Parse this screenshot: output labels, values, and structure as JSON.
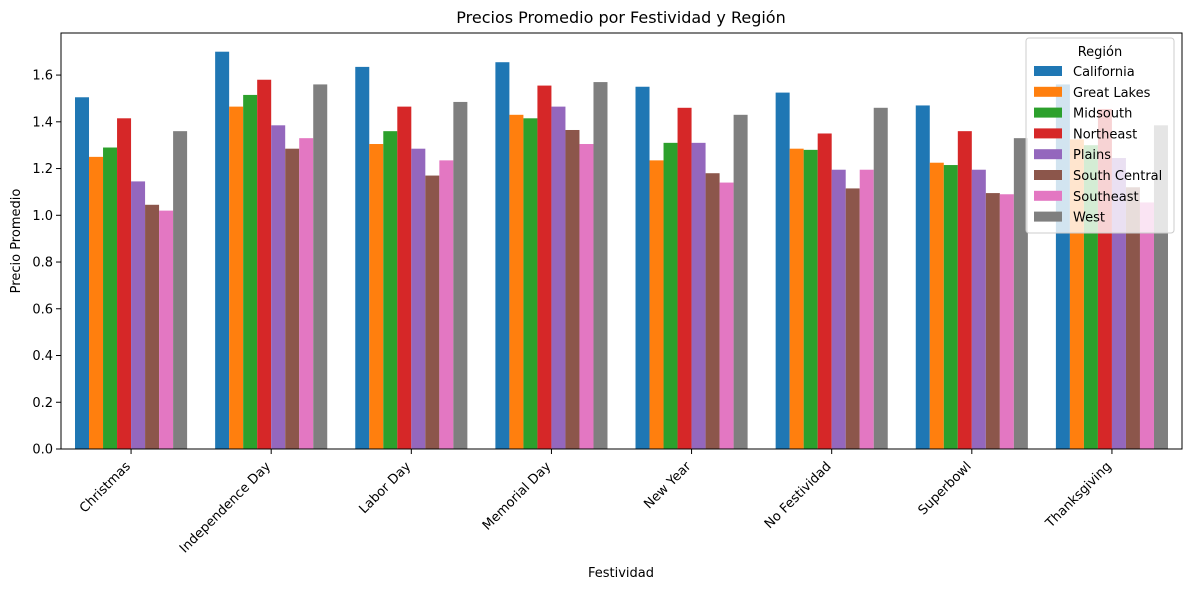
{
  "chart_data": {
    "type": "bar",
    "title": "Precios Promedio por Festividad y Región",
    "xlabel": "Festividad",
    "ylabel": "Precio Promedio",
    "ylim": [
      0,
      1.78
    ],
    "yticks": [
      "0.0",
      "0.2",
      "0.4",
      "0.6",
      "0.8",
      "1.0",
      "1.2",
      "1.4",
      "1.6"
    ],
    "grid": false,
    "legend_position": "top-right",
    "legend_title": "Región",
    "categories": [
      "Christmas",
      "Independence Day",
      "Labor Day",
      "Memorial Day",
      "New Year",
      "No Festividad",
      "Superbowl",
      "Thanksgiving"
    ],
    "series": [
      {
        "name": "California",
        "color": "#1f77b4",
        "values": [
          1.505,
          1.7,
          1.635,
          1.655,
          1.55,
          1.525,
          1.47,
          1.56
        ]
      },
      {
        "name": "Great Lakes",
        "color": "#ff7f0e",
        "values": [
          1.25,
          1.465,
          1.305,
          1.43,
          1.235,
          1.285,
          1.225,
          1.325
        ]
      },
      {
        "name": "Midsouth",
        "color": "#2ca02c",
        "values": [
          1.29,
          1.515,
          1.36,
          1.415,
          1.31,
          1.28,
          1.215,
          1.3
        ]
      },
      {
        "name": "Northeast",
        "color": "#d62728",
        "values": [
          1.415,
          1.58,
          1.465,
          1.555,
          1.46,
          1.35,
          1.36,
          1.455
        ]
      },
      {
        "name": "Plains",
        "color": "#9467bd",
        "values": [
          1.145,
          1.385,
          1.285,
          1.465,
          1.31,
          1.195,
          1.195,
          1.245
        ]
      },
      {
        "name": "South Central",
        "color": "#8c564b",
        "values": [
          1.045,
          1.285,
          1.17,
          1.365,
          1.18,
          1.115,
          1.095,
          1.12
        ]
      },
      {
        "name": "Southeast",
        "color": "#e377c2",
        "values": [
          1.02,
          1.33,
          1.235,
          1.305,
          1.14,
          1.195,
          1.09,
          1.055
        ]
      },
      {
        "name": "West",
        "color": "#7f7f7f",
        "values": [
          1.36,
          1.56,
          1.485,
          1.57,
          1.43,
          1.46,
          1.33,
          1.385
        ]
      }
    ]
  }
}
